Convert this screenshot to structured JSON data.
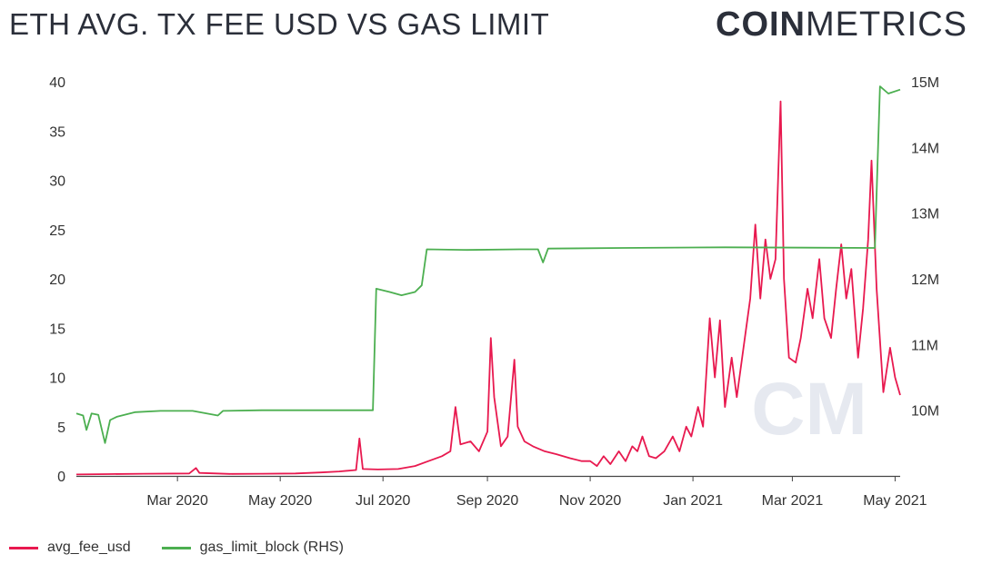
{
  "header": {
    "title": "ETH AVG. TX FEE USD VS GAS LIMIT",
    "logo_bold": "COIN",
    "logo_light": "METRICS"
  },
  "watermark": "CM",
  "colors": {
    "fee": "#e8194f",
    "gas": "#4caf50",
    "axis": "#444444",
    "watermark": "#e6e9f0"
  },
  "chart_data": {
    "type": "line",
    "title": "ETH AVG. TX FEE USD VS GAS LIMIT",
    "x_range": [
      "2020-01-01",
      "2021-05-04"
    ],
    "x_ticks": [
      {
        "date": "2020-03-01",
        "label": "Mar 2020"
      },
      {
        "date": "2020-05-01",
        "label": "May 2020"
      },
      {
        "date": "2020-07-01",
        "label": "Jul 2020"
      },
      {
        "date": "2020-09-01",
        "label": "Sep 2020"
      },
      {
        "date": "2020-11-01",
        "label": "Nov 2020"
      },
      {
        "date": "2021-01-01",
        "label": "Jan 2021"
      },
      {
        "date": "2021-03-01",
        "label": "Mar 2021"
      },
      {
        "date": "2021-05-01",
        "label": "May 2021"
      }
    ],
    "y_left": {
      "range": [
        0,
        40
      ],
      "ticks": [
        0,
        5,
        10,
        15,
        20,
        25,
        30,
        35,
        40
      ],
      "tick_labels": [
        "0",
        "5",
        "10",
        "15",
        "20",
        "25",
        "30",
        "35",
        "40"
      ]
    },
    "y_right": {
      "range": [
        9000000,
        15000000
      ],
      "ticks": [
        10000000,
        11000000,
        12000000,
        13000000,
        14000000,
        15000000
      ],
      "tick_labels": [
        "10M",
        "11M",
        "12M",
        "13M",
        "14M",
        "15M"
      ]
    },
    "legend_position": "bottom-left",
    "grid": false,
    "series": [
      {
        "name": "avg_fee_usd",
        "axis": "left",
        "points": [
          [
            "2020-01-01",
            0.15
          ],
          [
            "2020-01-20",
            0.18
          ],
          [
            "2020-02-10",
            0.22
          ],
          [
            "2020-03-08",
            0.25
          ],
          [
            "2020-03-12",
            0.8
          ],
          [
            "2020-03-14",
            0.3
          ],
          [
            "2020-04-01",
            0.2
          ],
          [
            "2020-04-20",
            0.22
          ],
          [
            "2020-05-10",
            0.25
          ],
          [
            "2020-05-25",
            0.35
          ],
          [
            "2020-06-05",
            0.45
          ],
          [
            "2020-06-12",
            0.55
          ],
          [
            "2020-06-15",
            0.6
          ],
          [
            "2020-06-17",
            3.8
          ],
          [
            "2020-06-19",
            0.7
          ],
          [
            "2020-06-28",
            0.65
          ],
          [
            "2020-07-10",
            0.7
          ],
          [
            "2020-07-20",
            1.0
          ],
          [
            "2020-07-28",
            1.5
          ],
          [
            "2020-08-05",
            2.0
          ],
          [
            "2020-08-10",
            2.5
          ],
          [
            "2020-08-13",
            7.0
          ],
          [
            "2020-08-16",
            3.2
          ],
          [
            "2020-08-22",
            3.5
          ],
          [
            "2020-08-27",
            2.5
          ],
          [
            "2020-09-01",
            4.5
          ],
          [
            "2020-09-03",
            14.0
          ],
          [
            "2020-09-05",
            8.0
          ],
          [
            "2020-09-09",
            3.0
          ],
          [
            "2020-09-13",
            4.0
          ],
          [
            "2020-09-17",
            11.8
          ],
          [
            "2020-09-19",
            5.0
          ],
          [
            "2020-09-23",
            3.5
          ],
          [
            "2020-09-28",
            3.0
          ],
          [
            "2020-10-05",
            2.5
          ],
          [
            "2020-10-12",
            2.2
          ],
          [
            "2020-10-20",
            1.8
          ],
          [
            "2020-10-27",
            1.5
          ],
          [
            "2020-11-01",
            1.5
          ],
          [
            "2020-11-05",
            1.0
          ],
          [
            "2020-11-09",
            2.0
          ],
          [
            "2020-11-13",
            1.2
          ],
          [
            "2020-11-18",
            2.5
          ],
          [
            "2020-11-22",
            1.5
          ],
          [
            "2020-11-26",
            3.0
          ],
          [
            "2020-11-29",
            2.5
          ],
          [
            "2020-12-02",
            4.0
          ],
          [
            "2020-12-06",
            2.0
          ],
          [
            "2020-12-10",
            1.8
          ],
          [
            "2020-12-15",
            2.5
          ],
          [
            "2020-12-20",
            4.0
          ],
          [
            "2020-12-24",
            2.5
          ],
          [
            "2020-12-28",
            5.0
          ],
          [
            "2020-12-31",
            4.0
          ],
          [
            "2021-01-04",
            7.0
          ],
          [
            "2021-01-07",
            5.0
          ],
          [
            "2021-01-11",
            16.0
          ],
          [
            "2021-01-14",
            10.0
          ],
          [
            "2021-01-17",
            15.8
          ],
          [
            "2021-01-20",
            7.0
          ],
          [
            "2021-01-24",
            12.0
          ],
          [
            "2021-01-27",
            8.0
          ],
          [
            "2021-01-31",
            13.0
          ],
          [
            "2021-02-04",
            18.0
          ],
          [
            "2021-02-07",
            25.5
          ],
          [
            "2021-02-10",
            18.0
          ],
          [
            "2021-02-13",
            24.0
          ],
          [
            "2021-02-16",
            20.0
          ],
          [
            "2021-02-19",
            22.0
          ],
          [
            "2021-02-22",
            38.0
          ],
          [
            "2021-02-24",
            20.0
          ],
          [
            "2021-02-27",
            12.0
          ],
          [
            "2021-03-03",
            11.5
          ],
          [
            "2021-03-06",
            14.0
          ],
          [
            "2021-03-10",
            19.0
          ],
          [
            "2021-03-13",
            16.0
          ],
          [
            "2021-03-17",
            22.0
          ],
          [
            "2021-03-20",
            16.0
          ],
          [
            "2021-03-24",
            14.0
          ],
          [
            "2021-03-27",
            19.0
          ],
          [
            "2021-03-30",
            23.5
          ],
          [
            "2021-04-02",
            18.0
          ],
          [
            "2021-04-05",
            21.0
          ],
          [
            "2021-04-09",
            12.0
          ],
          [
            "2021-04-12",
            17.0
          ],
          [
            "2021-04-15",
            24.0
          ],
          [
            "2021-04-17",
            32.0
          ],
          [
            "2021-04-20",
            19.0
          ],
          [
            "2021-04-24",
            8.5
          ],
          [
            "2021-04-28",
            13.0
          ],
          [
            "2021-05-01",
            10.0
          ],
          [
            "2021-05-04",
            8.2
          ]
        ]
      },
      {
        "name": "gas_limit_block (RHS)",
        "axis": "right",
        "points": [
          [
            "2020-01-01",
            9950000
          ],
          [
            "2020-01-05",
            9920000
          ],
          [
            "2020-01-07",
            9700000
          ],
          [
            "2020-01-10",
            9950000
          ],
          [
            "2020-01-14",
            9930000
          ],
          [
            "2020-01-18",
            9500000
          ],
          [
            "2020-01-21",
            9850000
          ],
          [
            "2020-01-25",
            9900000
          ],
          [
            "2020-02-05",
            9970000
          ],
          [
            "2020-02-20",
            9990000
          ],
          [
            "2020-03-10",
            9990000
          ],
          [
            "2020-03-25",
            9920000
          ],
          [
            "2020-03-28",
            9990000
          ],
          [
            "2020-04-20",
            10000000
          ],
          [
            "2020-05-20",
            10000000
          ],
          [
            "2020-06-25",
            10000000
          ],
          [
            "2020-06-27",
            11850000
          ],
          [
            "2020-07-05",
            11800000
          ],
          [
            "2020-07-12",
            11750000
          ],
          [
            "2020-07-20",
            11800000
          ],
          [
            "2020-07-24",
            11900000
          ],
          [
            "2020-07-27",
            12450000
          ],
          [
            "2020-08-20",
            12440000
          ],
          [
            "2020-09-20",
            12450000
          ],
          [
            "2020-10-01",
            12450000
          ],
          [
            "2020-10-04",
            12250000
          ],
          [
            "2020-10-07",
            12460000
          ],
          [
            "2020-11-20",
            12470000
          ],
          [
            "2021-01-20",
            12480000
          ],
          [
            "2021-04-19",
            12470000
          ],
          [
            "2021-04-22",
            14930000
          ],
          [
            "2021-04-27",
            14820000
          ],
          [
            "2021-05-04",
            14880000
          ]
        ]
      }
    ]
  },
  "legend": {
    "fee_label": "avg_fee_usd",
    "gas_label": "gas_limit_block (RHS)"
  }
}
